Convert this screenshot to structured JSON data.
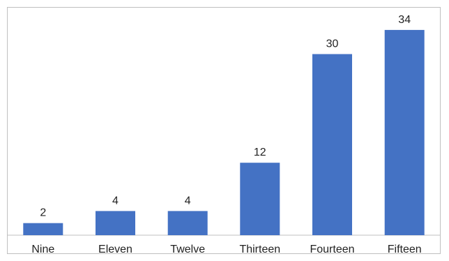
{
  "chart_data": {
    "type": "bar",
    "categories": [
      "Nine",
      "Eleven",
      "Twelve",
      "Thirteen",
      "Fourteen",
      "Fifteen"
    ],
    "values": [
      2,
      4,
      4,
      12,
      30,
      34
    ],
    "title": "",
    "xlabel": "",
    "ylabel": "",
    "ylim": [
      0,
      36
    ],
    "grid": false,
    "data_labels": true,
    "bar_color": "#4472c4",
    "axis_color": "#bfbfbf"
  }
}
